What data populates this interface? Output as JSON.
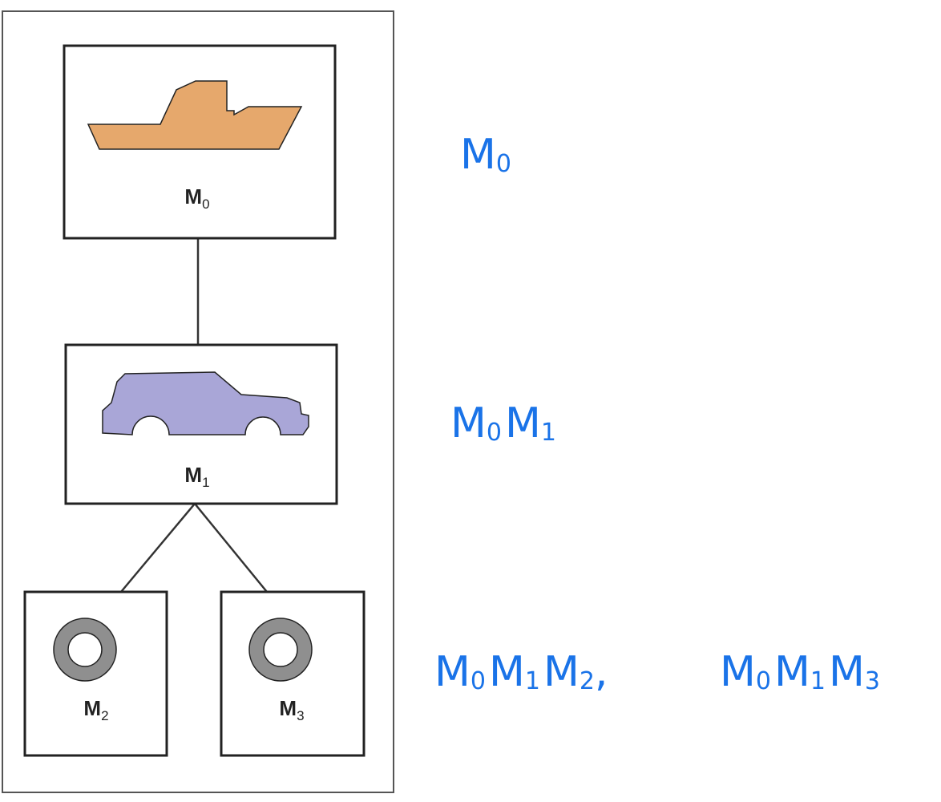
{
  "colors": {
    "ship_fill": "#e6a86c",
    "car_fill": "#a9a6d7",
    "wheel_fill": "#8f8f8f",
    "outline": "#222222",
    "annotation": "#1a73e8"
  },
  "nodes": [
    {
      "id": "m0",
      "label_main": "M",
      "label_sub": "0",
      "icon": "ship-icon"
    },
    {
      "id": "m1",
      "label_main": "M",
      "label_sub": "1",
      "icon": "car-icon"
    },
    {
      "id": "m2",
      "label_main": "M",
      "label_sub": "2",
      "icon": "wheel-icon"
    },
    {
      "id": "m3",
      "label_main": "M",
      "label_sub": "3",
      "icon": "wheel-icon"
    }
  ],
  "edges": [
    [
      "m0",
      "m1"
    ],
    [
      "m1",
      "m2"
    ],
    [
      "m1",
      "m3"
    ]
  ],
  "annotations": {
    "row0": [
      {
        "m": "M",
        "s": "0"
      }
    ],
    "row1": [
      {
        "m": "M",
        "s": "0"
      },
      {
        "m": "M",
        "s": "1"
      }
    ],
    "row2a": [
      {
        "m": "M",
        "s": "0"
      },
      {
        "m": "M",
        "s": "1"
      },
      {
        "m": "M",
        "s": "2"
      }
    ],
    "row2_sep": ",",
    "row2b": [
      {
        "m": "M",
        "s": "0"
      },
      {
        "m": "M",
        "s": "1"
      },
      {
        "m": "M",
        "s": "3"
      }
    ]
  }
}
